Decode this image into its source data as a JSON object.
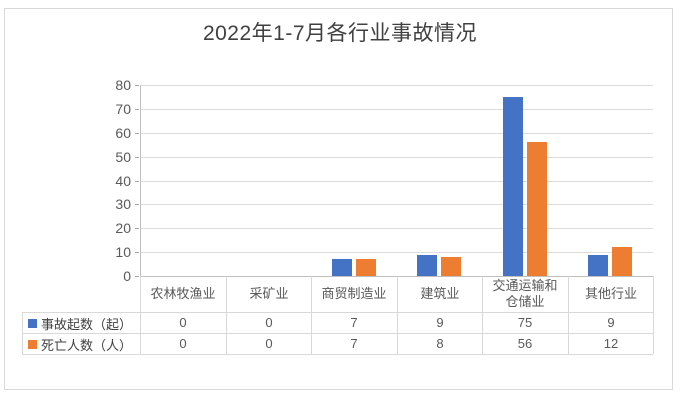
{
  "frame": {
    "background": "#FFFFFF",
    "border_color": "#D9D9D9"
  },
  "chart_data": {
    "type": "bar",
    "title": "2022年1-7月各行业事故情况",
    "categories": [
      "农林牧渔业",
      "采矿业",
      "商贸制造业",
      "建筑业",
      "交通运输和仓储业",
      "其他行业"
    ],
    "series": [
      {
        "name": "事故起数（起）",
        "color": "#4472C4",
        "values": [
          0,
          0,
          7,
          9,
          75,
          9
        ]
      },
      {
        "name": "死亡人数（人）",
        "color": "#ED7D31",
        "values": [
          0,
          0,
          7,
          8,
          56,
          12
        ]
      }
    ],
    "xlabel": "",
    "ylabel": "",
    "ylim": [
      0,
      80
    ],
    "y_ticks": [
      0,
      10,
      20,
      30,
      40,
      50,
      60,
      70,
      80
    ],
    "grid": "horizontal",
    "legend_position": "data-table-left",
    "data_table_shown": true
  }
}
